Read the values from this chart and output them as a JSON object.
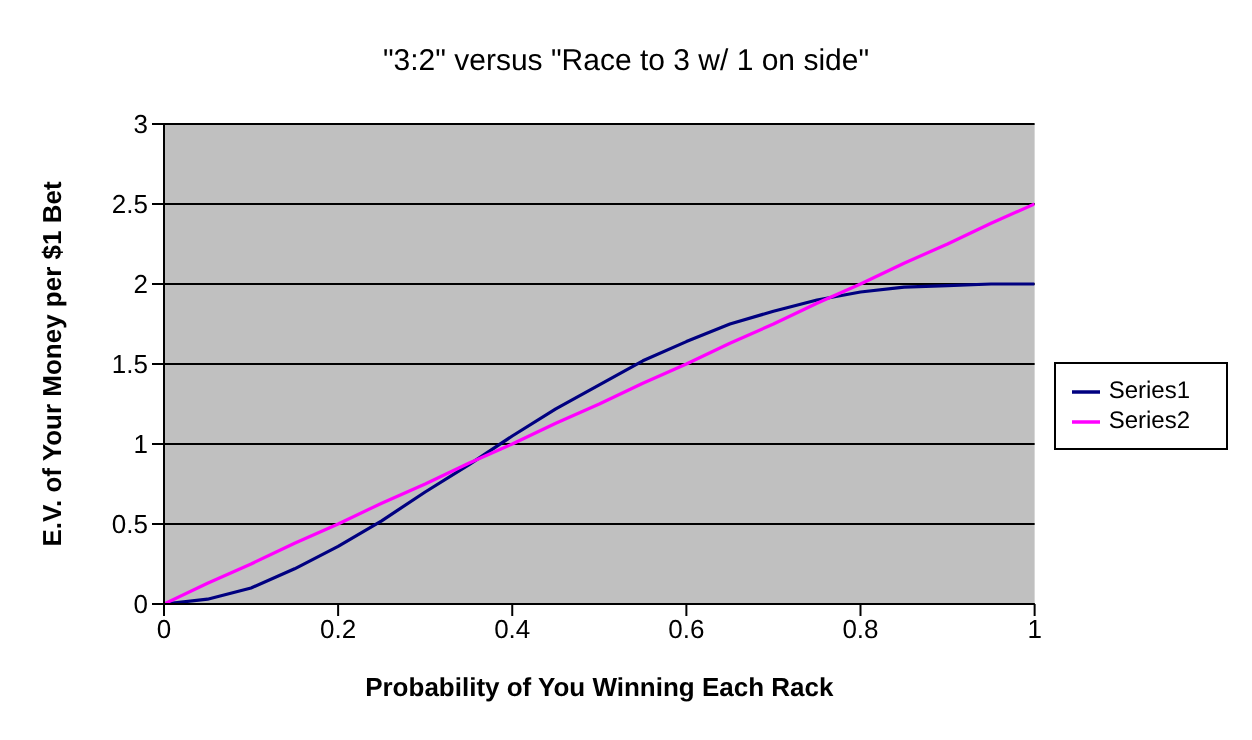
{
  "chart_data": {
    "type": "line",
    "title": "\"3:2\" versus \"Race to 3 w/ 1 on side\"",
    "xlabel": "Probability of You Winning Each Rack",
    "ylabel": "E.V. of Your Money per $1 Bet",
    "x": [
      0,
      0.05,
      0.1,
      0.15,
      0.2,
      0.25,
      0.3,
      0.35,
      0.4,
      0.45,
      0.5,
      0.55,
      0.6,
      0.65,
      0.7,
      0.75,
      0.8,
      0.85,
      0.9,
      0.95,
      1
    ],
    "series": [
      {
        "name": "Series1",
        "color": "#000080",
        "values": [
          0,
          0.03,
          0.1,
          0.22,
          0.36,
          0.52,
          0.7,
          0.87,
          1.05,
          1.22,
          1.37,
          1.52,
          1.64,
          1.75,
          1.83,
          1.9,
          1.95,
          1.98,
          1.99,
          2,
          2
        ]
      },
      {
        "name": "Series2",
        "color": "#ff00ff",
        "values": [
          0,
          0.13,
          0.25,
          0.38,
          0.5,
          0.63,
          0.75,
          0.88,
          1,
          1.13,
          1.25,
          1.38,
          1.5,
          1.63,
          1.75,
          1.88,
          2,
          2.13,
          2.25,
          2.38,
          2.5
        ]
      }
    ],
    "xlim": [
      0,
      1
    ],
    "xticks": [
      0,
      0.2,
      0.4,
      0.6,
      0.8,
      1
    ],
    "ylim": [
      0,
      3
    ],
    "yticks": [
      0,
      0.5,
      1,
      1.5,
      2,
      2.5,
      3
    ],
    "grid": "y",
    "legend": "right"
  }
}
